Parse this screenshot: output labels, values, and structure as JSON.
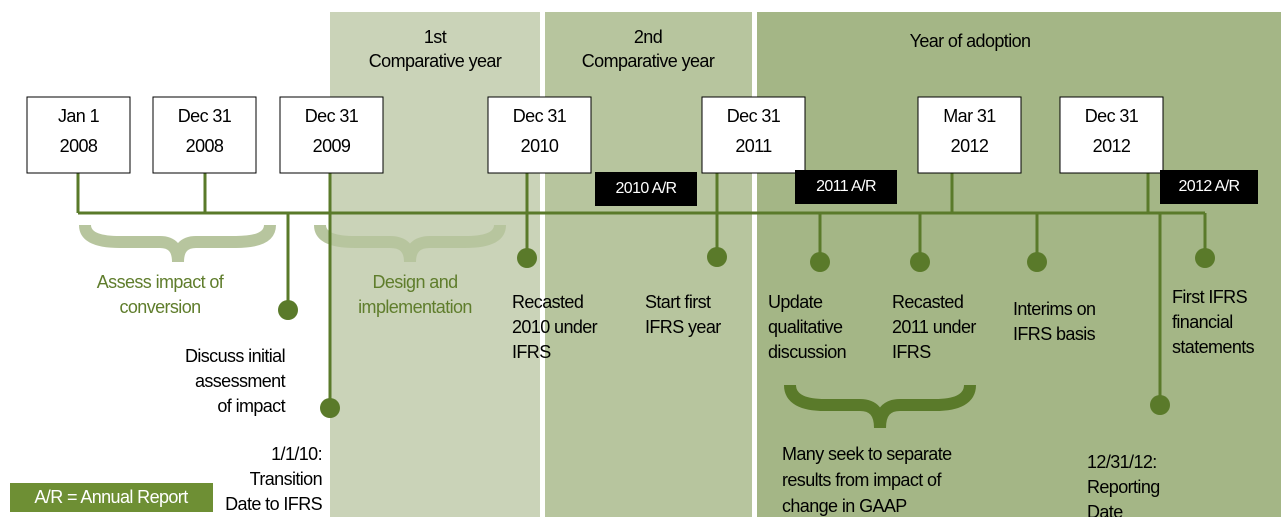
{
  "periods": [
    {
      "lines": [
        "1st",
        "Comparative year"
      ]
    },
    {
      "lines": [
        "2nd",
        "Comparative year"
      ]
    },
    {
      "lines": [
        "Year of adoption"
      ]
    }
  ],
  "dates": [
    {
      "lines": [
        "Jan 1",
        "2008"
      ]
    },
    {
      "lines": [
        "Dec 31",
        "2008"
      ]
    },
    {
      "lines": [
        "Dec 31",
        "2009"
      ]
    },
    {
      "lines": [
        "Dec 31",
        "2010"
      ]
    },
    {
      "lines": [
        "Dec 31",
        "2011"
      ]
    },
    {
      "lines": [
        "Mar 31",
        "2012"
      ]
    },
    {
      "lines": [
        "Dec 31",
        "2012"
      ]
    }
  ],
  "annual_reports": [
    "2010 A/R",
    "2011 A/R",
    "2012 A/R"
  ],
  "phases": [
    {
      "lines": [
        "Assess impact of",
        "conversion"
      ]
    },
    {
      "lines": [
        "Design and",
        "implementation"
      ]
    }
  ],
  "events": [
    {
      "lines": [
        "Discuss initial",
        "assessment",
        "of impact"
      ]
    },
    {
      "lines": [
        "1/1/10:",
        "Transition",
        "Date to IFRS"
      ]
    },
    {
      "lines": [
        "Recasted",
        "2010 under",
        "IFRS"
      ]
    },
    {
      "lines": [
        "Start first",
        "IFRS year"
      ]
    },
    {
      "lines": [
        "Update",
        "qualitative",
        "discussion"
      ]
    },
    {
      "lines": [
        "Recasted",
        "2011 under",
        "IFRS"
      ]
    },
    {
      "lines": [
        "Interims on",
        "IFRS basis"
      ]
    },
    {
      "lines": [
        "First IFRS",
        "financial",
        "statements"
      ]
    },
    {
      "lines": [
        "12/31/12:",
        "Reporting",
        "Date"
      ]
    }
  ],
  "note": {
    "lines": [
      "Many seek to separate",
      "results from impact of",
      "change in GAAP"
    ]
  },
  "legend": "A/R = Annual Report"
}
